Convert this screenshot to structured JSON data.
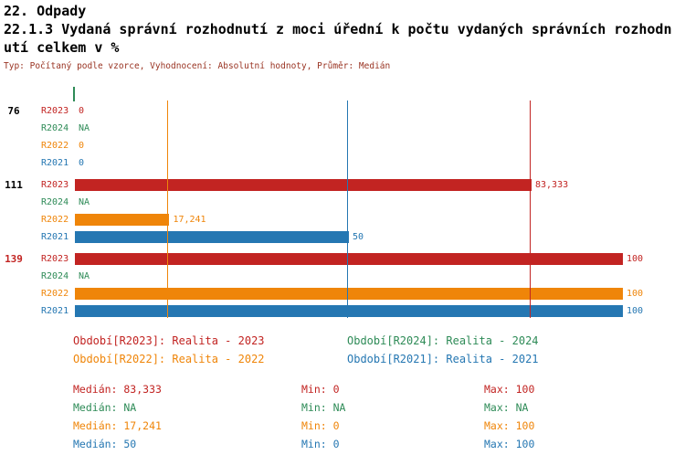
{
  "header": {
    "title": "22. Odpady",
    "subtitle": "22.1.3 Vydaná správní rozhodnutí z moci úřední k počtu vydaných správních rozhodnutí celkem v %",
    "meta": "Typ: Počítaný podle vzorce, Vyhodnocení: Absolutní hodnoty, Průměr: Medián"
  },
  "colors": {
    "R2023": "#C22422",
    "R2024": "#2E8B57",
    "R2022": "#EF8509",
    "R2021": "#2577B2",
    "meta": "#993322"
  },
  "chart_data": {
    "type": "bar",
    "orientation": "horizontal",
    "title": "22.1.3 Vydaná správní rozhodnutí z moci úřední k počtu vydaných správních rozhodnutí celkem v %",
    "xlim": [
      0,
      100
    ],
    "grid": false,
    "series_order": [
      "R2023",
      "R2024",
      "R2022",
      "R2021"
    ],
    "groups": [
      {
        "label": "76",
        "label_color": "#000000",
        "bars": [
          {
            "series": "R2023",
            "value": 0,
            "display": "0"
          },
          {
            "series": "R2024",
            "value": null,
            "display": "NA"
          },
          {
            "series": "R2022",
            "value": 0,
            "display": "0"
          },
          {
            "series": "R2021",
            "value": 0,
            "display": "0"
          }
        ]
      },
      {
        "label": "111",
        "label_color": "#000000",
        "bars": [
          {
            "series": "R2023",
            "value": 83.333,
            "display": "83,333"
          },
          {
            "series": "R2024",
            "value": null,
            "display": "NA"
          },
          {
            "series": "R2022",
            "value": 17.241,
            "display": "17,241"
          },
          {
            "series": "R2021",
            "value": 50,
            "display": "50"
          }
        ]
      },
      {
        "label": "139",
        "label_color": "#C22422",
        "bars": [
          {
            "series": "R2023",
            "value": 100,
            "display": "100"
          },
          {
            "series": "R2024",
            "value": null,
            "display": "NA"
          },
          {
            "series": "R2022",
            "value": 100,
            "display": "100"
          },
          {
            "series": "R2021",
            "value": 100,
            "display": "100"
          }
        ]
      }
    ],
    "median_lines": [
      {
        "series": "R2023",
        "value": 83.333
      },
      {
        "series": "R2022",
        "value": 17.241
      },
      {
        "series": "R2021",
        "value": 50
      }
    ],
    "zero_tick_series": "R2024"
  },
  "legend": {
    "items": [
      {
        "series": "R2023",
        "label": "Období[R2023]: Realita - 2023"
      },
      {
        "series": "R2024",
        "label": "Období[R2024]: Realita - 2024"
      },
      {
        "series": "R2022",
        "label": "Období[R2022]: Realita - 2022"
      },
      {
        "series": "R2021",
        "label": "Období[R2021]: Realita - 2021"
      }
    ]
  },
  "stats": {
    "rows": [
      {
        "series": "R2023",
        "median": "Medián: 83,333",
        "min": "Min: 0",
        "max": "Max: 100"
      },
      {
        "series": "R2024",
        "median": "Medián: NA",
        "min": "Min: NA",
        "max": "Max: NA"
      },
      {
        "series": "R2022",
        "median": "Medián: 17,241",
        "min": "Min: 0",
        "max": "Max: 100"
      },
      {
        "series": "R2021",
        "median": "Medián: 50",
        "min": "Min: 0",
        "max": "Max: 100"
      }
    ]
  }
}
